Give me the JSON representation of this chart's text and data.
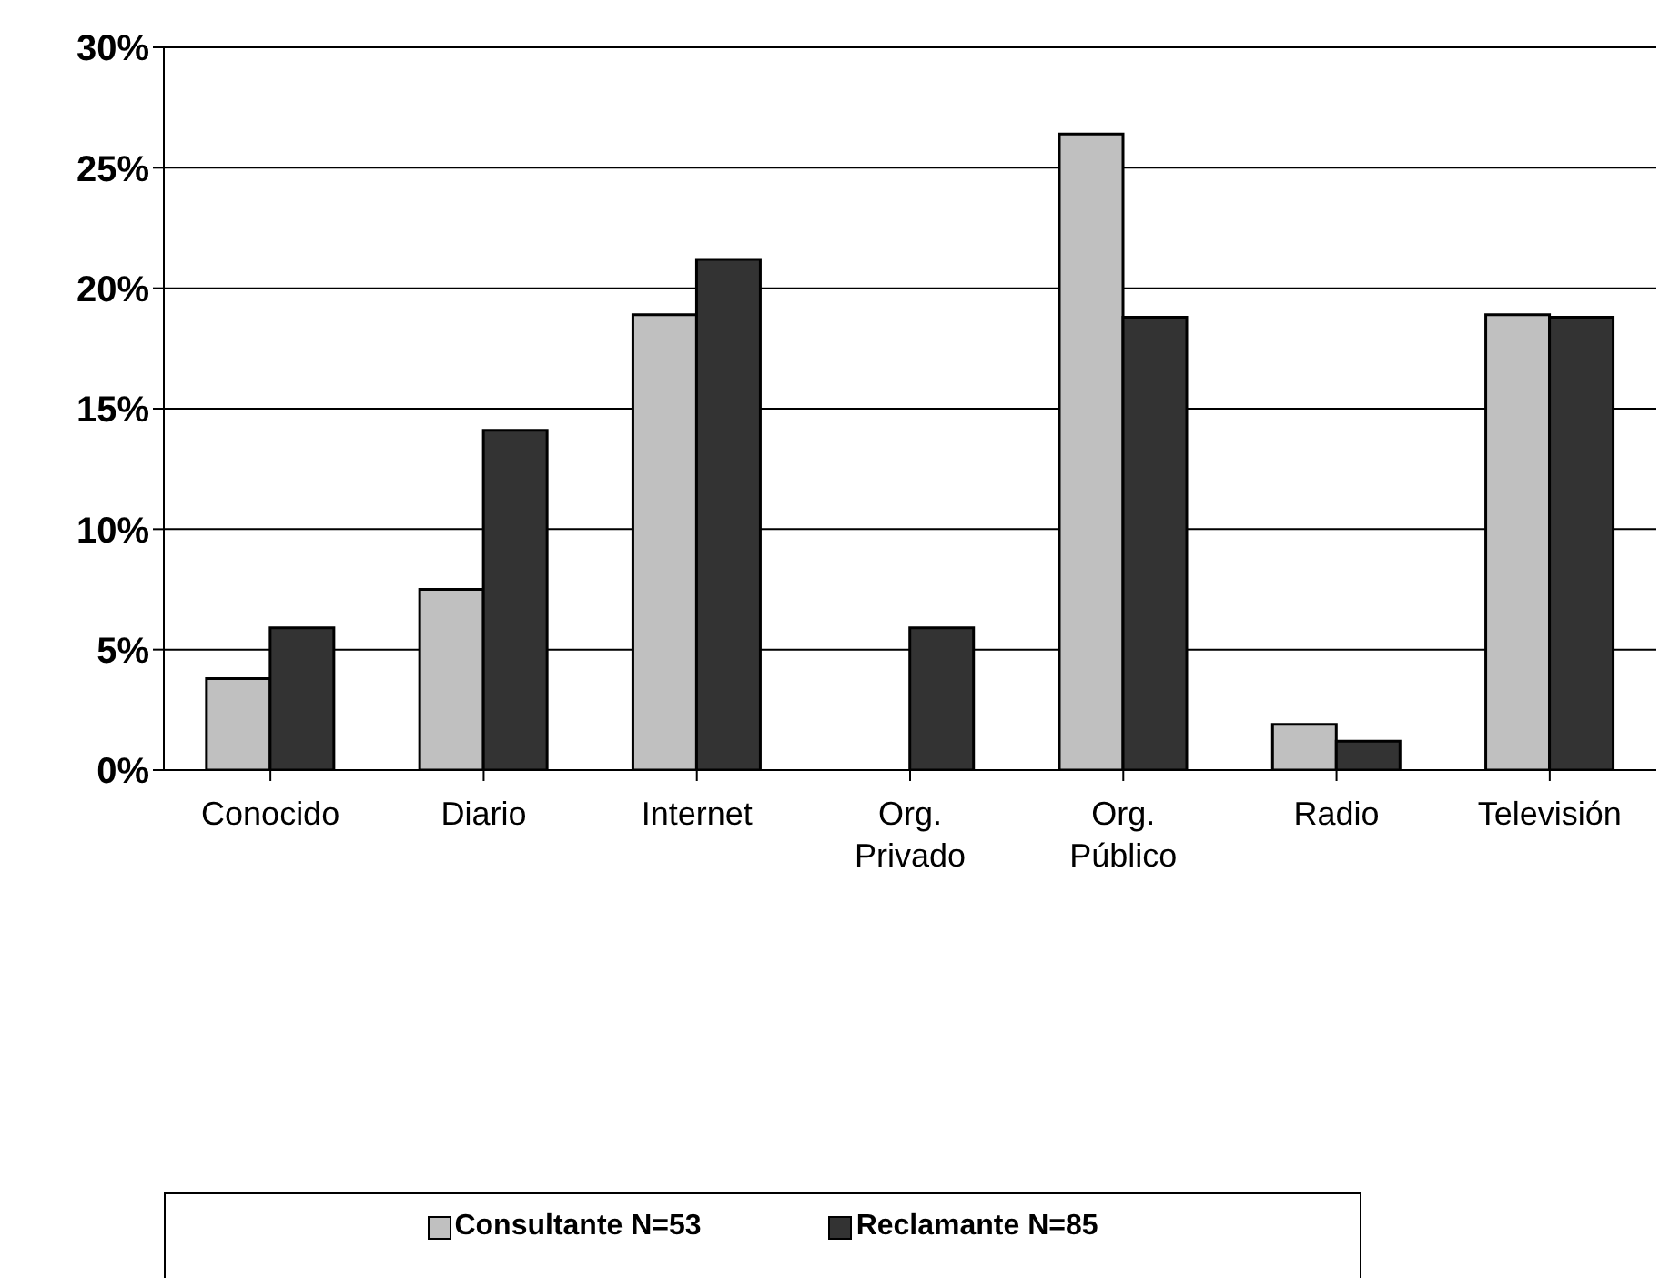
{
  "chart_data": {
    "type": "bar",
    "categories": [
      "Conocido",
      "Diario",
      "Internet",
      "Org. Privado",
      "Org. Público",
      "Radio",
      "Televisión"
    ],
    "series": [
      {
        "name": "Consultante N=53",
        "color": "#c0c0c0",
        "values": [
          3.8,
          7.5,
          18.9,
          0,
          26.4,
          1.9,
          18.9
        ]
      },
      {
        "name": "Reclamante N=85",
        "color": "#333333",
        "values": [
          5.9,
          14.1,
          21.2,
          5.9,
          18.8,
          1.2,
          18.8
        ]
      }
    ],
    "ylim": [
      0,
      30
    ],
    "yticks": [
      {
        "value": 0,
        "label": "0%"
      },
      {
        "value": 5,
        "label": "5%"
      },
      {
        "value": 10,
        "label": "10%"
      },
      {
        "value": 15,
        "label": "15%"
      },
      {
        "value": 20,
        "label": "20%"
      },
      {
        "value": 25,
        "label": "25%"
      },
      {
        "value": 30,
        "label": "30%"
      }
    ],
    "grid": "y",
    "legend": "bottom"
  }
}
